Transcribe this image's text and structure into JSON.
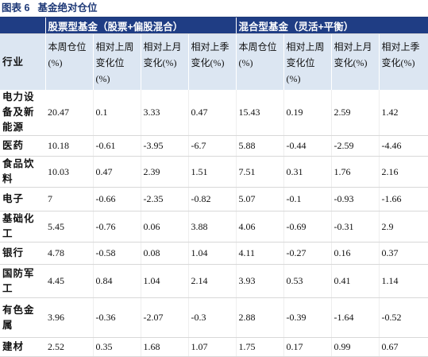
{
  "header": {
    "label": "图表 6",
    "title": "基金绝对仓位"
  },
  "table": {
    "groups": [
      "股票型基金（股票+偏股混合）",
      "混合型基金（灵活+平衡）"
    ],
    "columns": [
      "行业",
      "本周仓位(%)",
      "相对上周变化位(%)",
      "相对上月变化(%)",
      "相对上季变化(%)",
      "本周仓位(%)",
      "相对上周变化位(%)",
      "相对上月变化(%)",
      "相对上季变化(%)"
    ],
    "rows": [
      [
        "电力设备及新能源",
        20.47,
        0.1,
        3.33,
        0.47,
        15.43,
        0.19,
        2.59,
        1.42
      ],
      [
        "医药",
        10.18,
        -0.61,
        -3.95,
        -6.7,
        5.88,
        -0.44,
        -2.59,
        -4.46
      ],
      [
        "食品饮料",
        10.03,
        0.47,
        2.39,
        1.51,
        7.51,
        0.31,
        1.76,
        2.16
      ],
      [
        "电子",
        7,
        -0.66,
        -2.35,
        -0.82,
        5.07,
        -0.1,
        -0.93,
        -1.66
      ],
      [
        "基础化工",
        5.45,
        -0.76,
        0.06,
        3.88,
        4.06,
        -0.69,
        -0.31,
        2.9
      ],
      [
        "银行",
        4.78,
        -0.58,
        0.08,
        1.04,
        4.11,
        -0.27,
        0.16,
        0.37
      ],
      [
        "国防军工",
        4.45,
        0.84,
        1.04,
        2.14,
        3.93,
        0.53,
        0.41,
        1.14
      ],
      [
        "有色金属",
        3.96,
        -0.36,
        -2.07,
        -0.3,
        2.88,
        -0.39,
        -1.64,
        -0.52
      ],
      [
        "建材",
        2.52,
        0.35,
        1.68,
        1.07,
        1.75,
        0.17,
        0.99,
        0.67
      ]
    ]
  }
}
